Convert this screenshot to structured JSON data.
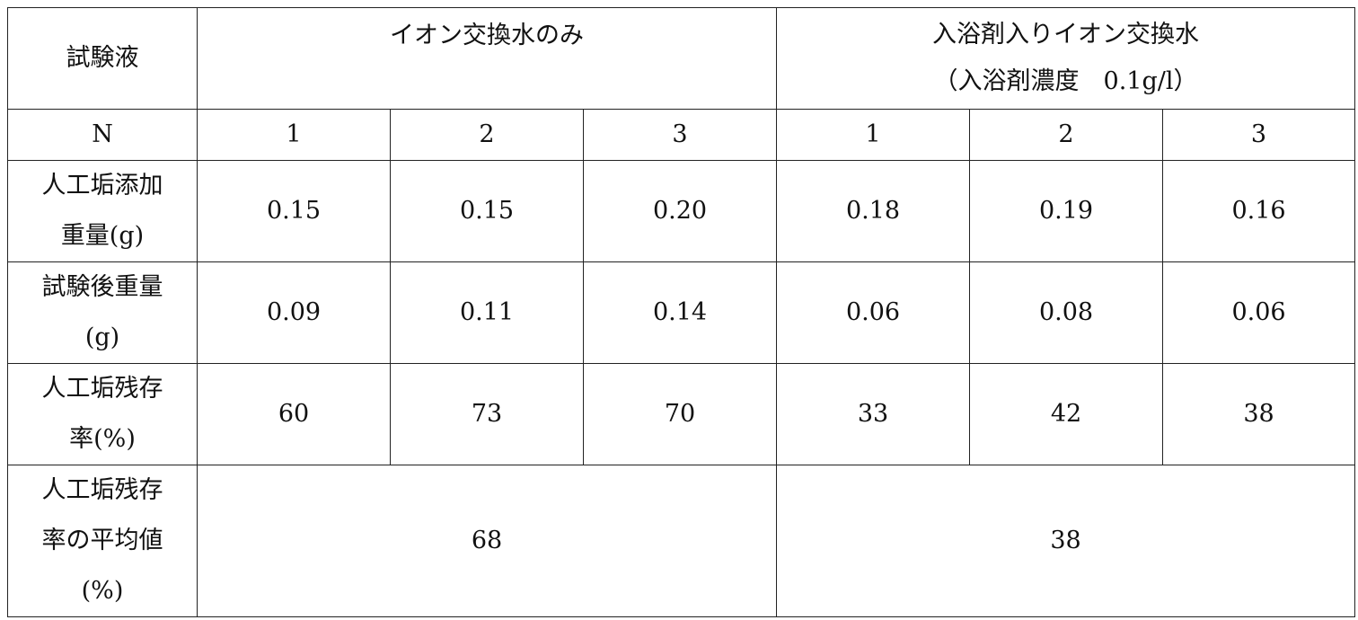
{
  "table": {
    "header_label": "試験液",
    "group1": "イオン交換水のみ",
    "group2_line1": "入浴剤入りイオン交換水",
    "group2_line2": "（入浴剤濃度　0.1g/l）",
    "n_label": "N",
    "n_values": [
      "1",
      "2",
      "3",
      "1",
      "2",
      "3"
    ],
    "rows": [
      {
        "label": "人工垢添加\n重量(g)",
        "values": [
          "0.15",
          "0.15",
          "0.20",
          "0.18",
          "0.19",
          "0.16"
        ]
      },
      {
        "label": "試験後重量\n(g)",
        "values": [
          "0.09",
          "0.11",
          "0.14",
          "0.06",
          "0.08",
          "0.06"
        ]
      },
      {
        "label": "人工垢残存\n率(%)",
        "values": [
          "60",
          "73",
          "70",
          "33",
          "42",
          "38"
        ]
      }
    ],
    "average": {
      "label": "人工垢残存\n率の平均値\n(%)",
      "group1": "68",
      "group2": "38"
    }
  }
}
